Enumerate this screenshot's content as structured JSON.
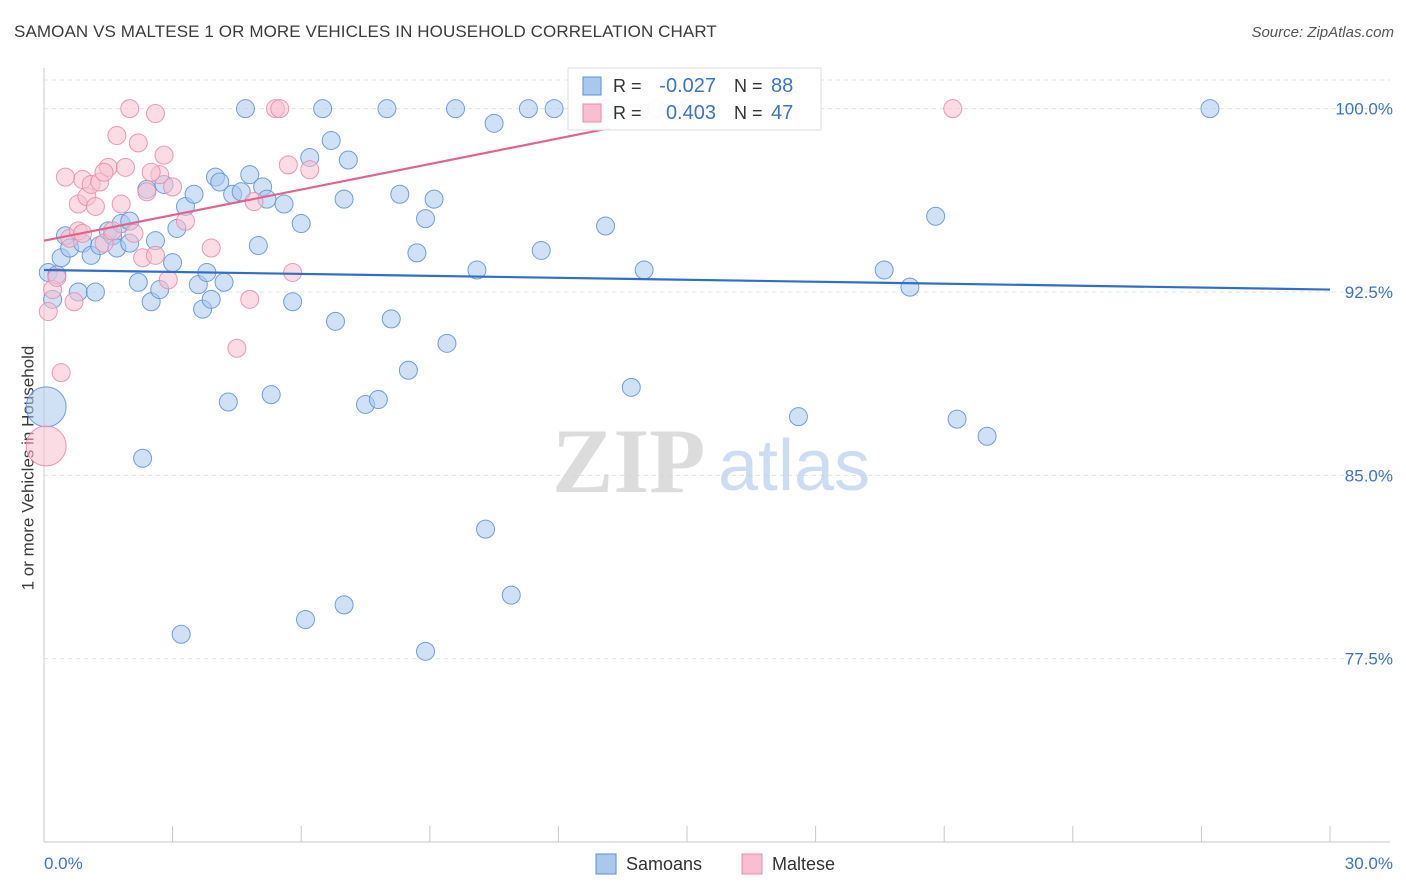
{
  "header": {
    "title": "SAMOAN VS MALTESE 1 OR MORE VEHICLES IN HOUSEHOLD CORRELATION CHART",
    "source": "Source: ZipAtlas.com"
  },
  "watermark": {
    "zip": "ZIP",
    "atlas": "atlas"
  },
  "colors": {
    "samoans_fill": "#aac8ee",
    "samoans_stroke": "#5b8fd6",
    "samoans_line": "#2f6fca",
    "maltese_fill": "#f7bfd0",
    "maltese_stroke": "#e68aa8",
    "maltese_line": "#e0648f",
    "tick_label": "#3d73c4",
    "grid": "#e3e3e3"
  },
  "legend_top": {
    "rows": [
      {
        "series": "Samoans",
        "r_label": "R =",
        "r_value": "-0.027",
        "n_label": "N =",
        "n_value": "88"
      },
      {
        "series": "Maltese",
        "r_label": "R =",
        "r_value": "0.403",
        "n_label": "N =",
        "n_value": "47"
      }
    ]
  },
  "chart_data": {
    "type": "scatter",
    "title": "SAMOAN VS MALTESE 1 OR MORE VEHICLES IN HOUSEHOLD CORRELATION CHART",
    "xlabel": "",
    "ylabel": "1 or more Vehicles in Household",
    "xlim": [
      0,
      30
    ],
    "ylim": [
      70,
      101.5
    ],
    "x_tick_labels": [
      "0.0%",
      "30.0%"
    ],
    "y_ticks": [
      77.5,
      85.0,
      92.5,
      100.0
    ],
    "y_tick_labels": [
      "77.5%",
      "85.0%",
      "92.5%",
      "100.0%"
    ],
    "grid": true,
    "legend_position": "bottom-center",
    "series": [
      {
        "name": "Samoans",
        "r": -0.027,
        "n": 88,
        "trend": {
          "x0": 0,
          "y0": 93.4,
          "x1": 30,
          "y1": 92.6
        },
        "points": [
          [
            0.1,
            93.3
          ],
          [
            0.2,
            92.2
          ],
          [
            0.3,
            93.2
          ],
          [
            0.4,
            93.9
          ],
          [
            0.5,
            94.8
          ],
          [
            0.6,
            94.3
          ],
          [
            0.8,
            92.5
          ],
          [
            0.9,
            94.5
          ],
          [
            1.1,
            94.0
          ],
          [
            1.2,
            92.5
          ],
          [
            1.3,
            94.4
          ],
          [
            1.5,
            95.0
          ],
          [
            1.6,
            94.8
          ],
          [
            1.7,
            94.3
          ],
          [
            1.8,
            95.3
          ],
          [
            2.0,
            94.5
          ],
          [
            2.0,
            95.4
          ],
          [
            2.2,
            92.9
          ],
          [
            2.4,
            96.7
          ],
          [
            2.5,
            92.1
          ],
          [
            2.6,
            94.6
          ],
          [
            2.7,
            92.6
          ],
          [
            2.8,
            96.9
          ],
          [
            3.0,
            93.7
          ],
          [
            3.1,
            95.1
          ],
          [
            3.3,
            96.0
          ],
          [
            3.5,
            96.5
          ],
          [
            3.6,
            92.8
          ],
          [
            3.7,
            91.8
          ],
          [
            3.8,
            93.3
          ],
          [
            3.9,
            92.2
          ],
          [
            4.0,
            97.2
          ],
          [
            4.1,
            97.0
          ],
          [
            4.2,
            92.9
          ],
          [
            4.3,
            88.0
          ],
          [
            4.4,
            96.5
          ],
          [
            4.6,
            96.6
          ],
          [
            4.7,
            100.0
          ],
          [
            4.8,
            97.3
          ],
          [
            5.0,
            94.4
          ],
          [
            5.1,
            96.8
          ],
          [
            5.2,
            96.3
          ],
          [
            5.3,
            88.3
          ],
          [
            5.6,
            96.1
          ],
          [
            5.8,
            92.1
          ],
          [
            6.0,
            95.3
          ],
          [
            6.2,
            98.0
          ],
          [
            6.5,
            100.0
          ],
          [
            6.7,
            98.7
          ],
          [
            6.8,
            91.3
          ],
          [
            7.0,
            96.3
          ],
          [
            7.1,
            97.9
          ],
          [
            7.5,
            87.9
          ],
          [
            7.8,
            88.1
          ],
          [
            8.0,
            100.0
          ],
          [
            8.1,
            91.4
          ],
          [
            8.3,
            96.5
          ],
          [
            8.5,
            89.3
          ],
          [
            8.7,
            94.1
          ],
          [
            8.9,
            95.5
          ],
          [
            9.1,
            96.3
          ],
          [
            9.4,
            90.4
          ],
          [
            9.6,
            100.0
          ],
          [
            10.1,
            93.4
          ],
          [
            10.3,
            82.8
          ],
          [
            10.5,
            99.4
          ],
          [
            10.9,
            80.1
          ],
          [
            11.3,
            100.0
          ],
          [
            11.6,
            94.2
          ],
          [
            11.9,
            100.0
          ],
          [
            13.1,
            95.2
          ],
          [
            13.1,
            100.0
          ],
          [
            13.7,
            88.6
          ],
          [
            14.0,
            93.4
          ],
          [
            15.0,
            100.0
          ],
          [
            17.6,
            87.4
          ],
          [
            19.6,
            93.4
          ],
          [
            20.2,
            92.7
          ],
          [
            20.8,
            95.6
          ],
          [
            21.3,
            87.3
          ],
          [
            22.0,
            86.6
          ],
          [
            27.2,
            100.0
          ],
          [
            0.05,
            87.8
          ],
          [
            2.3,
            85.7
          ],
          [
            3.2,
            78.5
          ],
          [
            6.1,
            79.1
          ],
          [
            7.0,
            79.7
          ],
          [
            8.9,
            77.8
          ]
        ]
      },
      {
        "name": "Maltese",
        "r": 0.403,
        "n": 47,
        "trend": {
          "x0": 0,
          "y0": 94.6,
          "x1": 13.2,
          "y1": 99.2
        },
        "points": [
          [
            0.05,
            86.2
          ],
          [
            0.1,
            91.7
          ],
          [
            0.2,
            92.6
          ],
          [
            0.3,
            93.1
          ],
          [
            0.4,
            89.2
          ],
          [
            0.6,
            94.7
          ],
          [
            0.7,
            92.1
          ],
          [
            0.8,
            95.0
          ],
          [
            0.8,
            96.1
          ],
          [
            0.9,
            97.1
          ],
          [
            1.0,
            96.4
          ],
          [
            1.1,
            96.9
          ],
          [
            1.2,
            96.0
          ],
          [
            1.3,
            97.0
          ],
          [
            1.4,
            94.5
          ],
          [
            1.5,
            97.6
          ],
          [
            1.6,
            95.0
          ],
          [
            1.7,
            98.9
          ],
          [
            1.8,
            96.1
          ],
          [
            1.9,
            97.6
          ],
          [
            2.0,
            100.0
          ],
          [
            2.1,
            94.9
          ],
          [
            2.2,
            98.6
          ],
          [
            2.3,
            93.9
          ],
          [
            2.4,
            96.6
          ],
          [
            2.6,
            94.0
          ],
          [
            2.6,
            99.8
          ],
          [
            2.7,
            97.3
          ],
          [
            2.8,
            98.1
          ],
          [
            2.9,
            93.0
          ],
          [
            3.0,
            96.8
          ],
          [
            3.3,
            95.4
          ],
          [
            3.9,
            94.3
          ],
          [
            4.5,
            90.2
          ],
          [
            4.8,
            92.2
          ],
          [
            4.9,
            96.2
          ],
          [
            5.4,
            100.0
          ],
          [
            5.5,
            100.0
          ],
          [
            5.7,
            97.7
          ],
          [
            5.8,
            93.3
          ],
          [
            6.2,
            97.5
          ],
          [
            14.3,
            100.0
          ],
          [
            21.2,
            100.0
          ],
          [
            0.5,
            97.2
          ],
          [
            1.4,
            97.4
          ],
          [
            2.5,
            97.4
          ],
          [
            0.9,
            94.9
          ]
        ]
      }
    ]
  },
  "legend_bottom": {
    "items": [
      "Samoans",
      "Maltese"
    ]
  }
}
